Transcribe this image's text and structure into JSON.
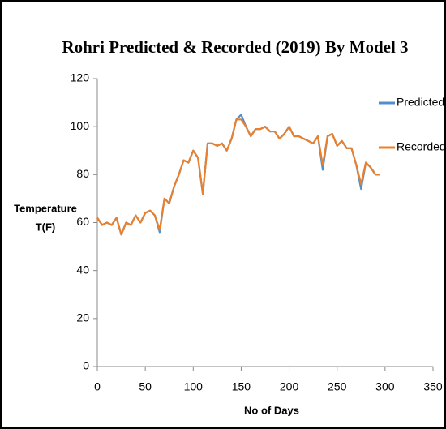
{
  "chart_data": {
    "type": "line",
    "title": "Rohri  Predicted & Recorded (2019) By Model 3",
    "x_label": "No of Days",
    "y_label": [
      "Temperature",
      "T(F)"
    ],
    "x": [
      0,
      5,
      10,
      15,
      20,
      25,
      30,
      35,
      40,
      45,
      50,
      55,
      60,
      65,
      70,
      75,
      80,
      85,
      90,
      95,
      100,
      105,
      110,
      115,
      120,
      125,
      130,
      135,
      140,
      145,
      150,
      155,
      160,
      165,
      170,
      175,
      180,
      185,
      190,
      195,
      200,
      205,
      210,
      215,
      220,
      225,
      230,
      235,
      240,
      245,
      250,
      255,
      260,
      265,
      270,
      275,
      280,
      285,
      290,
      295
    ],
    "series": [
      {
        "name": "Predicted",
        "color": "#4f8fcb",
        "values": [
          62,
          59,
          60,
          59,
          62,
          55,
          60,
          59,
          63,
          60,
          64,
          65,
          63,
          56,
          70,
          68,
          75,
          80,
          86,
          85,
          90,
          87,
          72,
          93,
          93,
          92,
          93,
          90,
          95,
          103,
          105,
          100,
          96,
          99,
          99,
          100,
          98,
          98,
          95,
          97,
          100,
          96,
          96,
          95,
          94,
          93,
          96,
          82,
          96,
          97,
          92,
          94,
          91,
          91,
          84,
          74,
          85,
          83,
          80,
          80
        ]
      },
      {
        "name": "Recorded",
        "color": "#e8802f",
        "values": [
          62,
          59,
          60,
          59,
          62,
          55,
          60,
          59,
          63,
          60,
          64,
          65,
          63,
          57,
          70,
          68,
          75,
          80,
          86,
          85,
          90,
          87,
          72,
          93,
          93,
          92,
          93,
          90,
          95,
          103,
          103,
          100,
          96,
          99,
          99,
          100,
          98,
          98,
          95,
          97,
          100,
          96,
          96,
          95,
          94,
          93,
          96,
          84,
          96,
          97,
          92,
          94,
          91,
          91,
          84,
          76,
          85,
          83,
          80,
          80
        ]
      }
    ],
    "xlim": [
      0,
      350
    ],
    "xticks": [
      0,
      50,
      100,
      150,
      200,
      250,
      300,
      350
    ],
    "ylim": [
      0,
      120
    ],
    "yticks": [
      0,
      20,
      40,
      60,
      80,
      100,
      120
    ],
    "legend": "right"
  }
}
